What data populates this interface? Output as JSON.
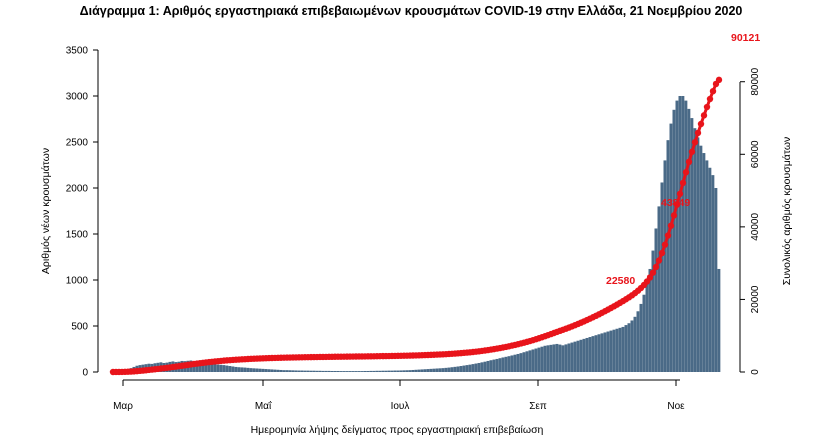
{
  "chart_data": {
    "type": "bar",
    "title": "Διάγραμμα 1: Αριθμός εργαστηριακά επιβεβαιωμένων κρουσμάτων COVID-19 στην Ελλάδα, 21 Νοεμβρίου 2020",
    "xlabel": "Ημερομηνία λήψης δείγματος προς εργαστηριακή επιβεβαίωση",
    "ylabel": "Αριθμός νέων κρουσμάτων",
    "y2label": "Συνολικός αριθμός κρουσμάτων",
    "ylim": [
      0,
      3500
    ],
    "y2lim": [
      0,
      90121
    ],
    "yticks": [
      0,
      500,
      1000,
      1500,
      2000,
      2500,
      3000,
      3500
    ],
    "y2ticks": [
      0,
      20000,
      40000,
      60000,
      80000
    ],
    "xticks": [
      "Μαρ",
      "Μαΐ",
      "Ιουλ",
      "Σεπ",
      "Νοε"
    ],
    "grid": false,
    "colors": {
      "bars": "#4a6a87",
      "cumulative": "#e8141b"
    },
    "series": [
      {
        "type": "bar",
        "name": "",
        "values": [
          3,
          5,
          8,
          12,
          20,
          30,
          42,
          55,
          68,
          75,
          80,
          85,
          90,
          88,
          95,
          100,
          105,
          98,
          102,
          110,
          115,
          108,
          112,
          120,
          118,
          122,
          125,
          119,
          113,
          108,
          102,
          98,
          95,
          90,
          85,
          80,
          78,
          75,
          70,
          65,
          60,
          55,
          52,
          50,
          48,
          45,
          42,
          40,
          38,
          36,
          34,
          32,
          30,
          28,
          26,
          24,
          22,
          20,
          20,
          19,
          18,
          17,
          16,
          16,
          15,
          15,
          14,
          14,
          13,
          13,
          12,
          12,
          12,
          11,
          11,
          11,
          10,
          10,
          10,
          10,
          10,
          10,
          10,
          10,
          11,
          11,
          12,
          12,
          13,
          13,
          14,
          14,
          15,
          15,
          16,
          16,
          17,
          18,
          19,
          20,
          22,
          24,
          26,
          28,
          30,
          32,
          34,
          36,
          38,
          40,
          42,
          45,
          48,
          52,
          56,
          60,
          65,
          70,
          75,
          80,
          86,
          92,
          98,
          105,
          112,
          120,
          128,
          135,
          142,
          150,
          158,
          165,
          172,
          180,
          188,
          196,
          205,
          215,
          225,
          235,
          245,
          255,
          265,
          275,
          285,
          290,
          295,
          300,
          305,
          298,
          290,
          300,
          310,
          320,
          330,
          340,
          350,
          360,
          370,
          380,
          390,
          400,
          410,
          420,
          430,
          440,
          450,
          460,
          470,
          480,
          490,
          510,
          530,
          560,
          600,
          660,
          740,
          840,
          960,
          1120,
          1320,
          1560,
          1800,
          2060,
          2300,
          2520,
          2700,
          2850,
          2950,
          3000,
          3000,
          2950,
          2860,
          2760,
          2650,
          2550,
          2460,
          2380,
          2300,
          2220,
          2140,
          2000,
          1120
        ]
      },
      {
        "type": "line",
        "name": "",
        "values": [
          3,
          8,
          16,
          28,
          48,
          78,
          120,
          175,
          243,
          318,
          398,
          483,
          573,
          661,
          756,
          856,
          961,
          1059,
          1161,
          1271,
          1386,
          1494,
          1606,
          1726,
          1844,
          1966,
          2091,
          2210,
          2323,
          2431,
          2533,
          2631,
          2726,
          2816,
          2901,
          2981,
          3059,
          3134,
          3204,
          3269,
          3329,
          3384,
          3436,
          3486,
          3534,
          3579,
          3621,
          3661,
          3699,
          3735,
          3769,
          3801,
          3831,
          3859,
          3885,
          3909,
          3931,
          3951,
          3971,
          3990,
          4008,
          4025,
          4041,
          4057,
          4072,
          4087,
          4101,
          4115,
          4128,
          4141,
          4153,
          4165,
          4177,
          4188,
          4199,
          4210,
          4220,
          4230,
          4240,
          4250,
          4260,
          4270,
          4280,
          4290,
          4301,
          4312,
          4324,
          4336,
          4349,
          4362,
          4376,
          4390,
          4405,
          4420,
          4436,
          4452,
          4469,
          4487,
          4506,
          4526,
          4548,
          4572,
          4598,
          4626,
          4656,
          4688,
          4722,
          4758,
          4796,
          4836,
          4878,
          4923,
          4971,
          5023,
          5079,
          5139,
          5204,
          5274,
          5349,
          5429,
          5515,
          5607,
          5705,
          5810,
          5922,
          6042,
          6170,
          6305,
          6447,
          6597,
          6755,
          6920,
          7092,
          7272,
          7460,
          7656,
          7861,
          8076,
          8301,
          8536,
          8781,
          9036,
          9301,
          9576,
          9861,
          10151,
          10446,
          10746,
          11051,
          11349,
          11639,
          11939,
          12249,
          12569,
          12899,
          13239,
          13589,
          13949,
          14319,
          14699,
          15089,
          15489,
          15899,
          16319,
          16749,
          17189,
          17639,
          18099,
          18569,
          19049,
          19539,
          20049,
          20579,
          21139,
          21739,
          22399,
          23139,
          23979,
          24939,
          26059,
          27379,
          28939,
          30739,
          32799,
          35099,
          37619,
          40319,
          43169,
          46119,
          49119,
          52119,
          55069,
          57929,
          60689,
          63339,
          65889,
          68349,
          70729,
          73029,
          75249,
          77389,
          79389,
          80509
        ]
      }
    ],
    "annotations": [
      "22580",
      "43849",
      "90121"
    ]
  }
}
